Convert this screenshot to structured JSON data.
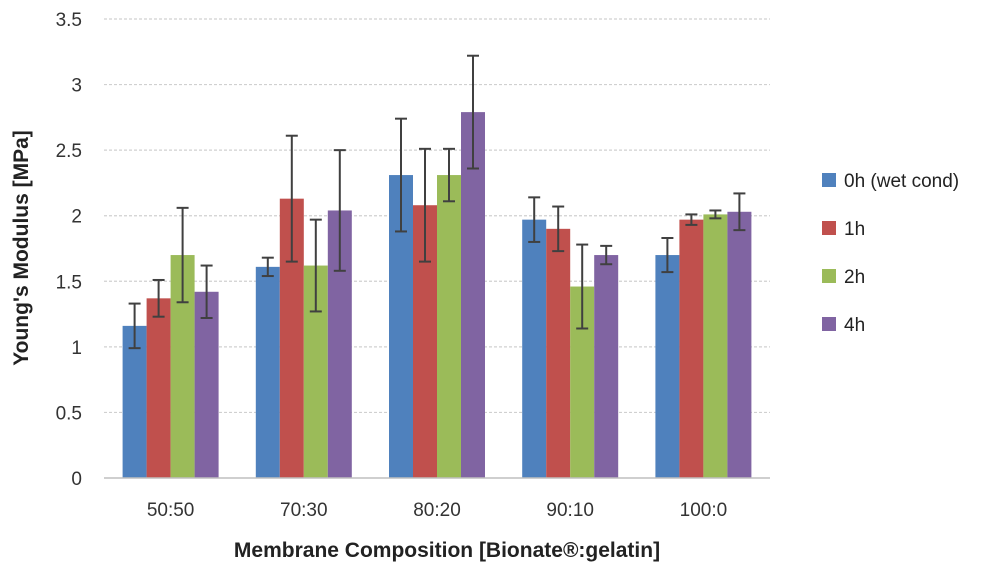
{
  "chart_data": {
    "type": "bar",
    "xlabel": "Membrane Composition [Bionate®:gelatin]",
    "ylabel": "Young's Modulus [MPa]",
    "ylim": [
      0,
      3.5
    ],
    "yticks": [
      "0",
      "0.5",
      "1",
      "1.5",
      "2",
      "2.5",
      "3",
      "3.5"
    ],
    "categories": [
      "50:50",
      "70:30",
      "80:20",
      "90:10",
      "100:0"
    ],
    "grid": true,
    "legend_position": "right",
    "series": [
      {
        "name": "0h (wet cond)",
        "color": "#4f81bd",
        "values": [
          1.16,
          1.61,
          2.31,
          1.97,
          1.7
        ],
        "errors": [
          0.17,
          0.07,
          0.43,
          0.17,
          0.13
        ]
      },
      {
        "name": "1h",
        "color": "#c0504d",
        "values": [
          1.37,
          2.13,
          2.08,
          1.9,
          1.97
        ],
        "errors": [
          0.14,
          0.48,
          0.43,
          0.17,
          0.04
        ]
      },
      {
        "name": "2h",
        "color": "#9bbb59",
        "values": [
          1.7,
          1.62,
          2.31,
          1.46,
          2.01
        ],
        "errors": [
          0.36,
          0.35,
          0.2,
          0.32,
          0.03
        ]
      },
      {
        "name": "4h",
        "color": "#8064a2",
        "values": [
          1.42,
          2.04,
          2.79,
          1.7,
          2.03
        ],
        "errors": [
          0.2,
          0.46,
          0.43,
          0.07,
          0.14
        ]
      }
    ]
  }
}
